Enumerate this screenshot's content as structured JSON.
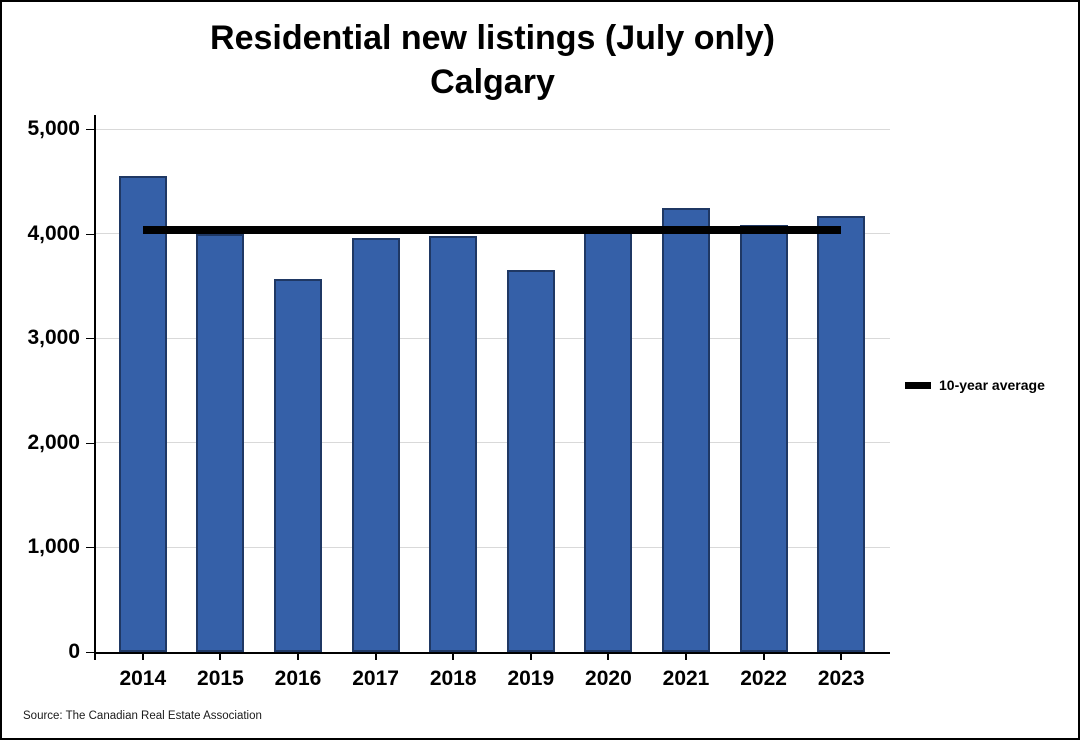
{
  "title": {
    "line1": "Residential new listings (July only)",
    "line2": "Calgary"
  },
  "legend": {
    "label": "10-year average"
  },
  "source_note": "Source: The Canadian Real Estate Association",
  "colors": {
    "bar_fill": "#3560A8",
    "bar_border": "#1F3864",
    "average_line": "#000000",
    "gridline": "#D9D9D9",
    "axis": "#000000",
    "background": "#FFFFFF"
  },
  "chart_data": {
    "type": "bar",
    "title": "Residential new listings (July only)",
    "subtitle": "Calgary",
    "categories": [
      "2014",
      "2015",
      "2016",
      "2017",
      "2018",
      "2019",
      "2020",
      "2021",
      "2022",
      "2023"
    ],
    "values": [
      4550,
      4000,
      3570,
      3960,
      3980,
      3650,
      4070,
      4240,
      4080,
      4170
    ],
    "average_line": {
      "label": "10-year average",
      "value": 4030
    },
    "xlabel": "",
    "ylabel": "",
    "ylim": [
      0,
      5000
    ],
    "ytick_interval": 1000,
    "yticks": [
      {
        "value": 5000,
        "label": "5,000"
      },
      {
        "value": 4000,
        "label": "4,000"
      },
      {
        "value": 3000,
        "label": "3,000"
      },
      {
        "value": 2000,
        "label": "2,000"
      },
      {
        "value": 1000,
        "label": "1,000"
      },
      {
        "value": 0,
        "label": "0"
      }
    ],
    "grid": true,
    "legend_position": "right"
  }
}
